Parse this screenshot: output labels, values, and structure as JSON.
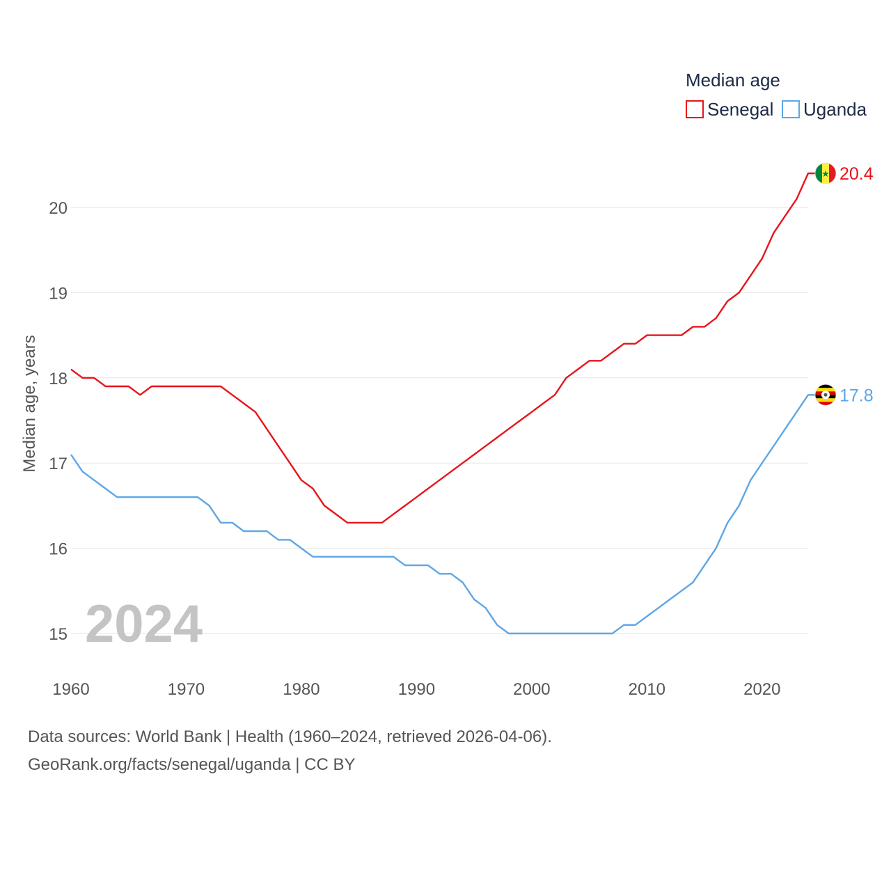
{
  "chart_data": {
    "type": "line",
    "title": "",
    "xlabel": "",
    "ylabel": "Median age, years",
    "xlim": [
      1960,
      2024
    ],
    "ylim": [
      14.5,
      20.6
    ],
    "y_ticks": [
      15,
      16,
      17,
      18,
      19,
      20
    ],
    "x_ticks": [
      1960,
      1970,
      1980,
      1990,
      2000,
      2010,
      2020
    ],
    "grid": true,
    "year_label": "2024",
    "legend": {
      "title": "Median age",
      "placement": "top-right",
      "entries": [
        "Senegal",
        "Uganda"
      ]
    },
    "x": [
      1960,
      1961,
      1962,
      1963,
      1964,
      1965,
      1966,
      1967,
      1968,
      1969,
      1970,
      1971,
      1972,
      1973,
      1974,
      1975,
      1976,
      1977,
      1978,
      1979,
      1980,
      1981,
      1982,
      1983,
      1984,
      1985,
      1986,
      1987,
      1988,
      1989,
      1990,
      1991,
      1992,
      1993,
      1994,
      1995,
      1996,
      1997,
      1998,
      1999,
      2000,
      2001,
      2002,
      2003,
      2004,
      2005,
      2006,
      2007,
      2008,
      2009,
      2010,
      2011,
      2012,
      2013,
      2014,
      2015,
      2016,
      2017,
      2018,
      2019,
      2020,
      2021,
      2022,
      2023,
      2024
    ],
    "series": [
      {
        "name": "Senegal",
        "color": "#e8141c",
        "end_label": "20.4",
        "flag": "senegal-flag",
        "values": [
          18.1,
          18.0,
          18.0,
          17.9,
          17.9,
          17.9,
          17.8,
          17.9,
          17.9,
          17.9,
          17.9,
          17.9,
          17.9,
          17.9,
          17.8,
          17.7,
          17.6,
          17.4,
          17.2,
          17.0,
          16.8,
          16.7,
          16.5,
          16.4,
          16.3,
          16.3,
          16.3,
          16.3,
          16.4,
          16.5,
          16.6,
          16.7,
          16.8,
          16.9,
          17.0,
          17.1,
          17.2,
          17.3,
          17.4,
          17.5,
          17.6,
          17.7,
          17.8,
          18.0,
          18.1,
          18.2,
          18.2,
          18.3,
          18.4,
          18.4,
          18.5,
          18.5,
          18.5,
          18.5,
          18.6,
          18.6,
          18.7,
          18.9,
          19.0,
          19.2,
          19.4,
          19.7,
          19.9,
          20.1,
          20.4
        ]
      },
      {
        "name": "Uganda",
        "color": "#5ea6e6",
        "end_label": "17.8",
        "flag": "uganda-flag",
        "values": [
          17.1,
          16.9,
          16.8,
          16.7,
          16.6,
          16.6,
          16.6,
          16.6,
          16.6,
          16.6,
          16.6,
          16.6,
          16.5,
          16.3,
          16.3,
          16.2,
          16.2,
          16.2,
          16.1,
          16.1,
          16.0,
          15.9,
          15.9,
          15.9,
          15.9,
          15.9,
          15.9,
          15.9,
          15.9,
          15.8,
          15.8,
          15.8,
          15.7,
          15.7,
          15.6,
          15.4,
          15.3,
          15.1,
          15.0,
          15.0,
          15.0,
          15.0,
          15.0,
          15.0,
          15.0,
          15.0,
          15.0,
          15.0,
          15.1,
          15.1,
          15.2,
          15.3,
          15.4,
          15.5,
          15.6,
          15.8,
          16.0,
          16.3,
          16.5,
          16.8,
          17.0,
          17.2,
          17.4,
          17.6,
          17.8
        ]
      }
    ]
  },
  "source": {
    "line1": "Data sources: World Bank | Health (1960–2024, retrieved 2026-04-06).",
    "line2": "GeoRank.org/facts/senegal/uganda | CC BY"
  },
  "colors": {
    "grid": "#e6e6e6",
    "text": "#555555"
  }
}
